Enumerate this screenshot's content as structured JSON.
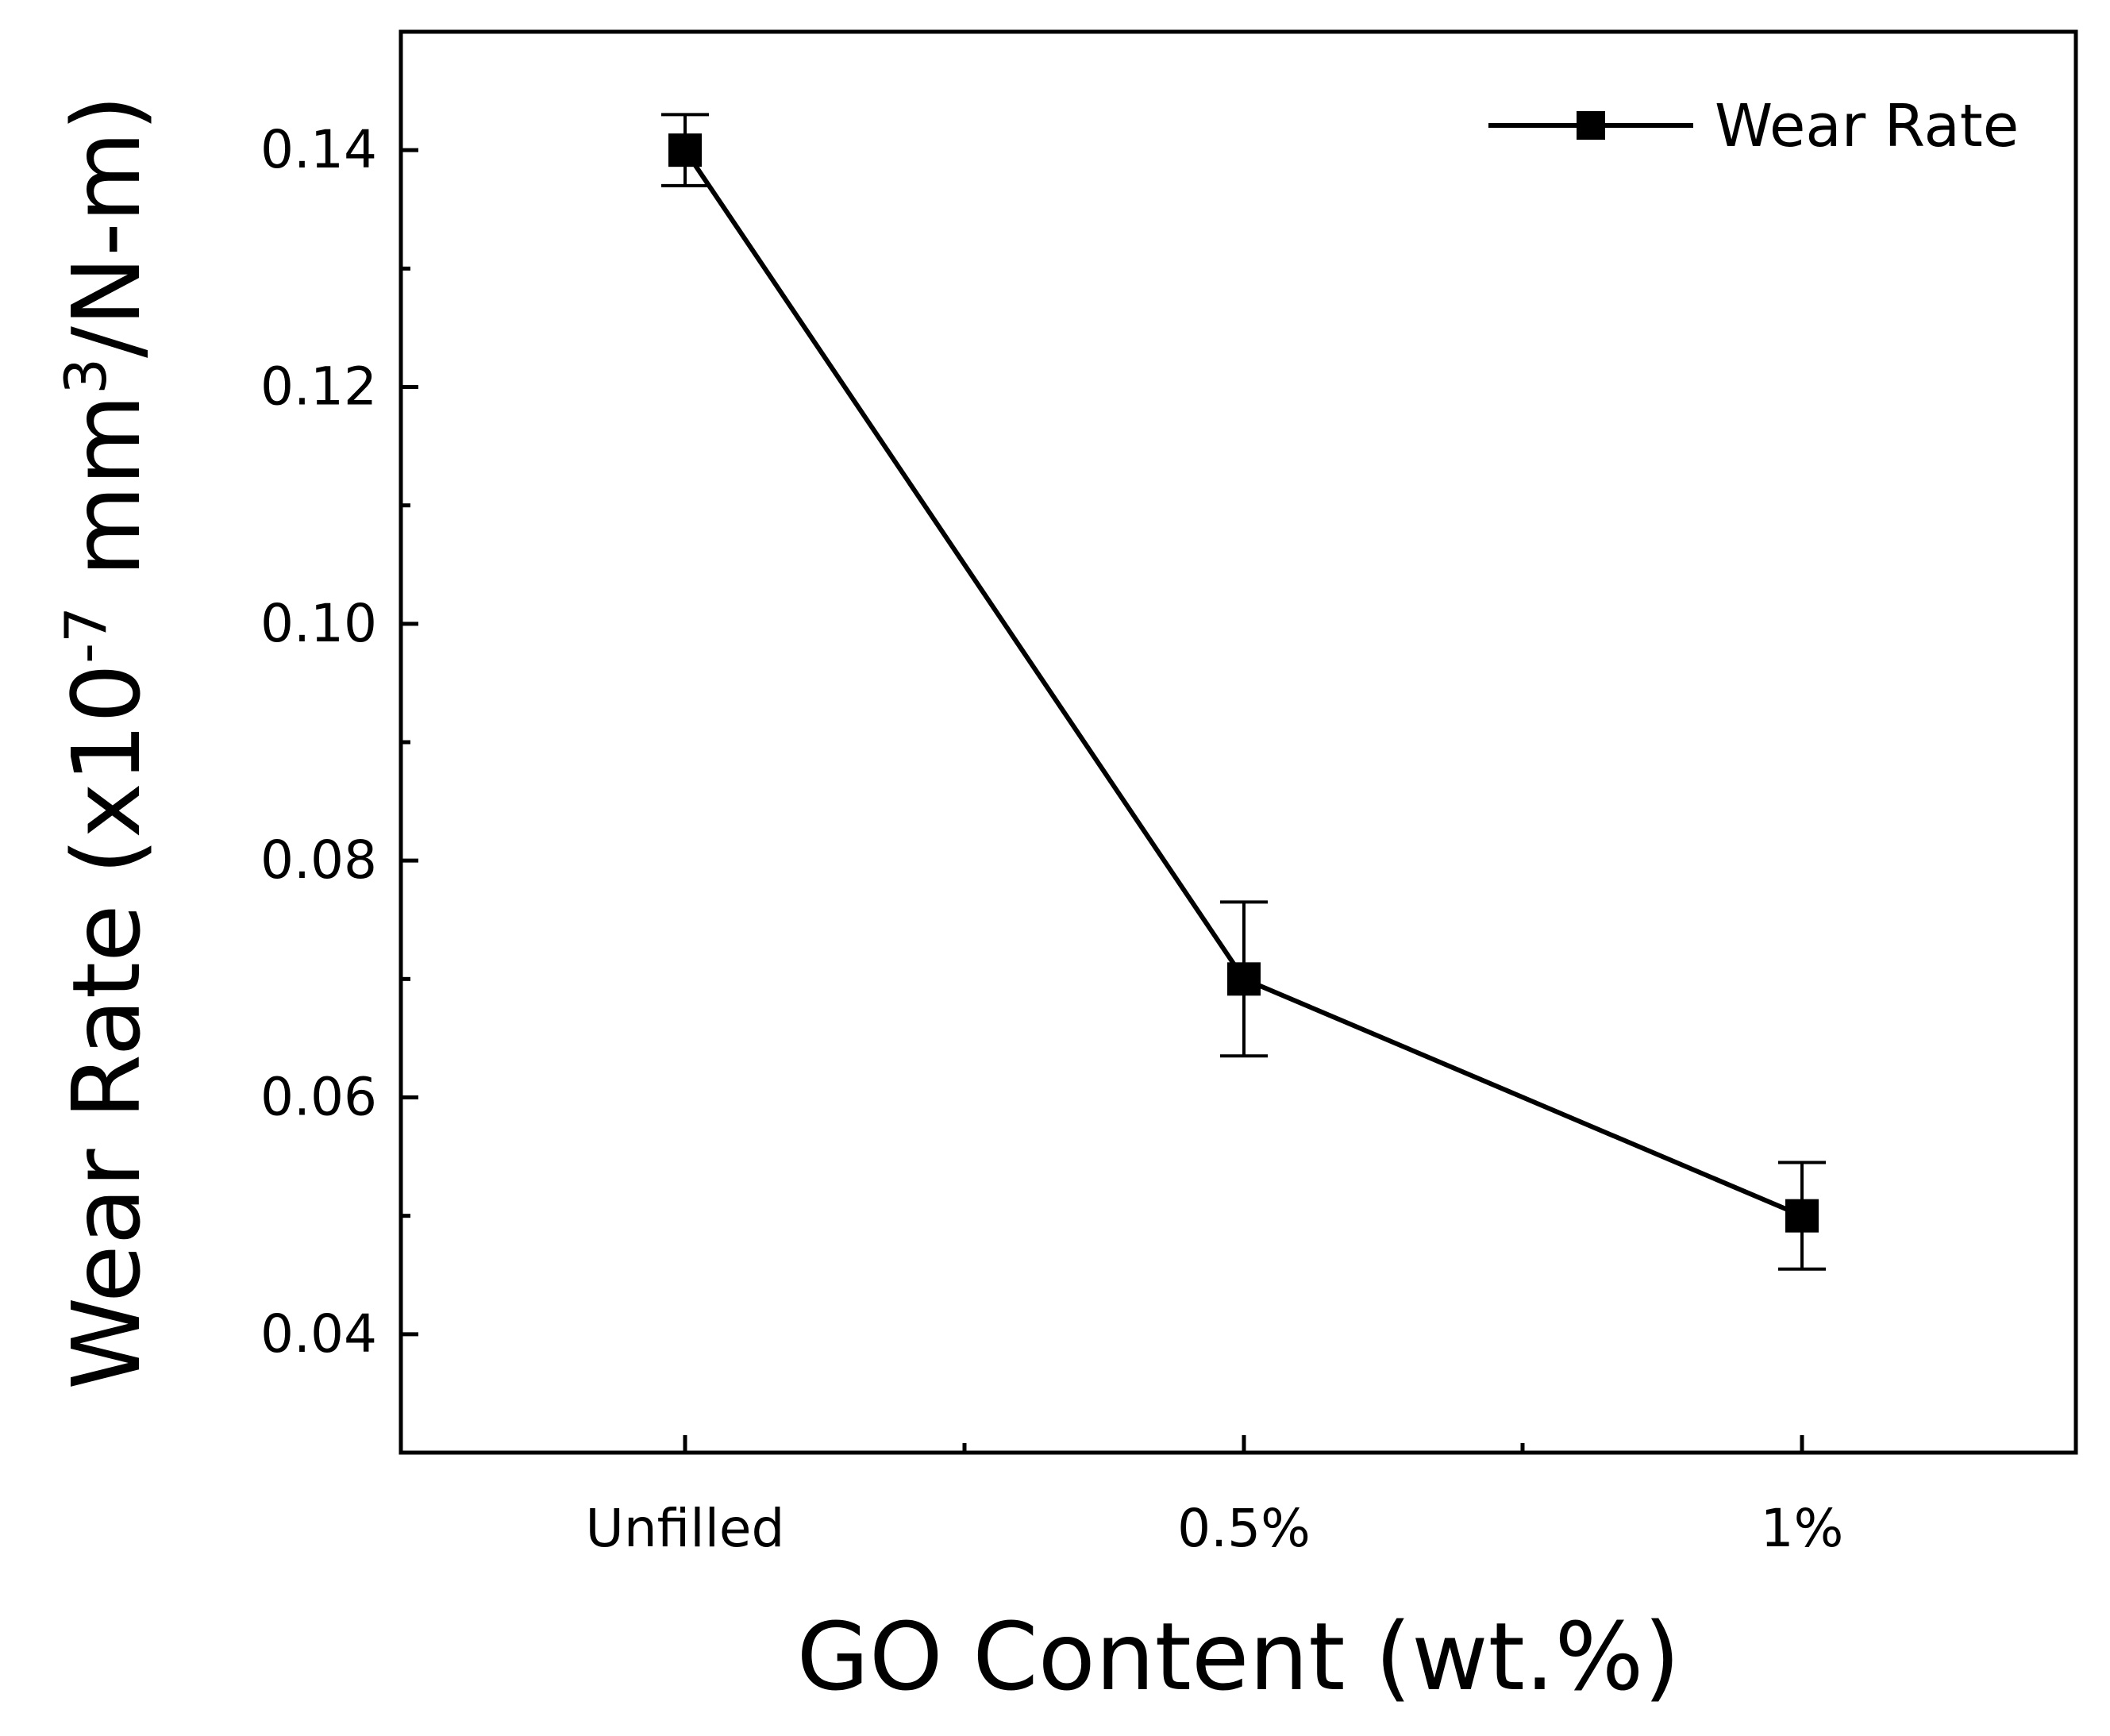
{
  "chart_data": {
    "type": "line",
    "categories": [
      "Unfilled",
      "0.5%",
      "1%"
    ],
    "series": [
      {
        "name": "Wear Rate",
        "values": [
          0.14,
          0.07,
          0.05
        ],
        "errors": [
          0.003,
          0.0065,
          0.0045
        ],
        "marker": "square",
        "color": "#000000"
      }
    ],
    "xlabel": "GO Content (wt.%)",
    "ylabel": {
      "prefix": "Wear Rate (x10",
      "exp1": "-7",
      "mid": " mm",
      "exp2": "3",
      "suffix": "/N-m)"
    },
    "ylim": [
      0.03,
      0.15
    ],
    "yticks_major": [
      0.04,
      0.06,
      0.08,
      0.1,
      0.12,
      0.14
    ],
    "ytick_labels": [
      "0.04",
      "0.06",
      "0.08",
      "0.10",
      "0.12",
      "0.14"
    ],
    "yticks_minor": [
      0.05,
      0.07,
      0.09,
      0.11,
      0.13
    ],
    "legend": {
      "position": "top-right",
      "label": "Wear Rate"
    },
    "grid": false
  }
}
